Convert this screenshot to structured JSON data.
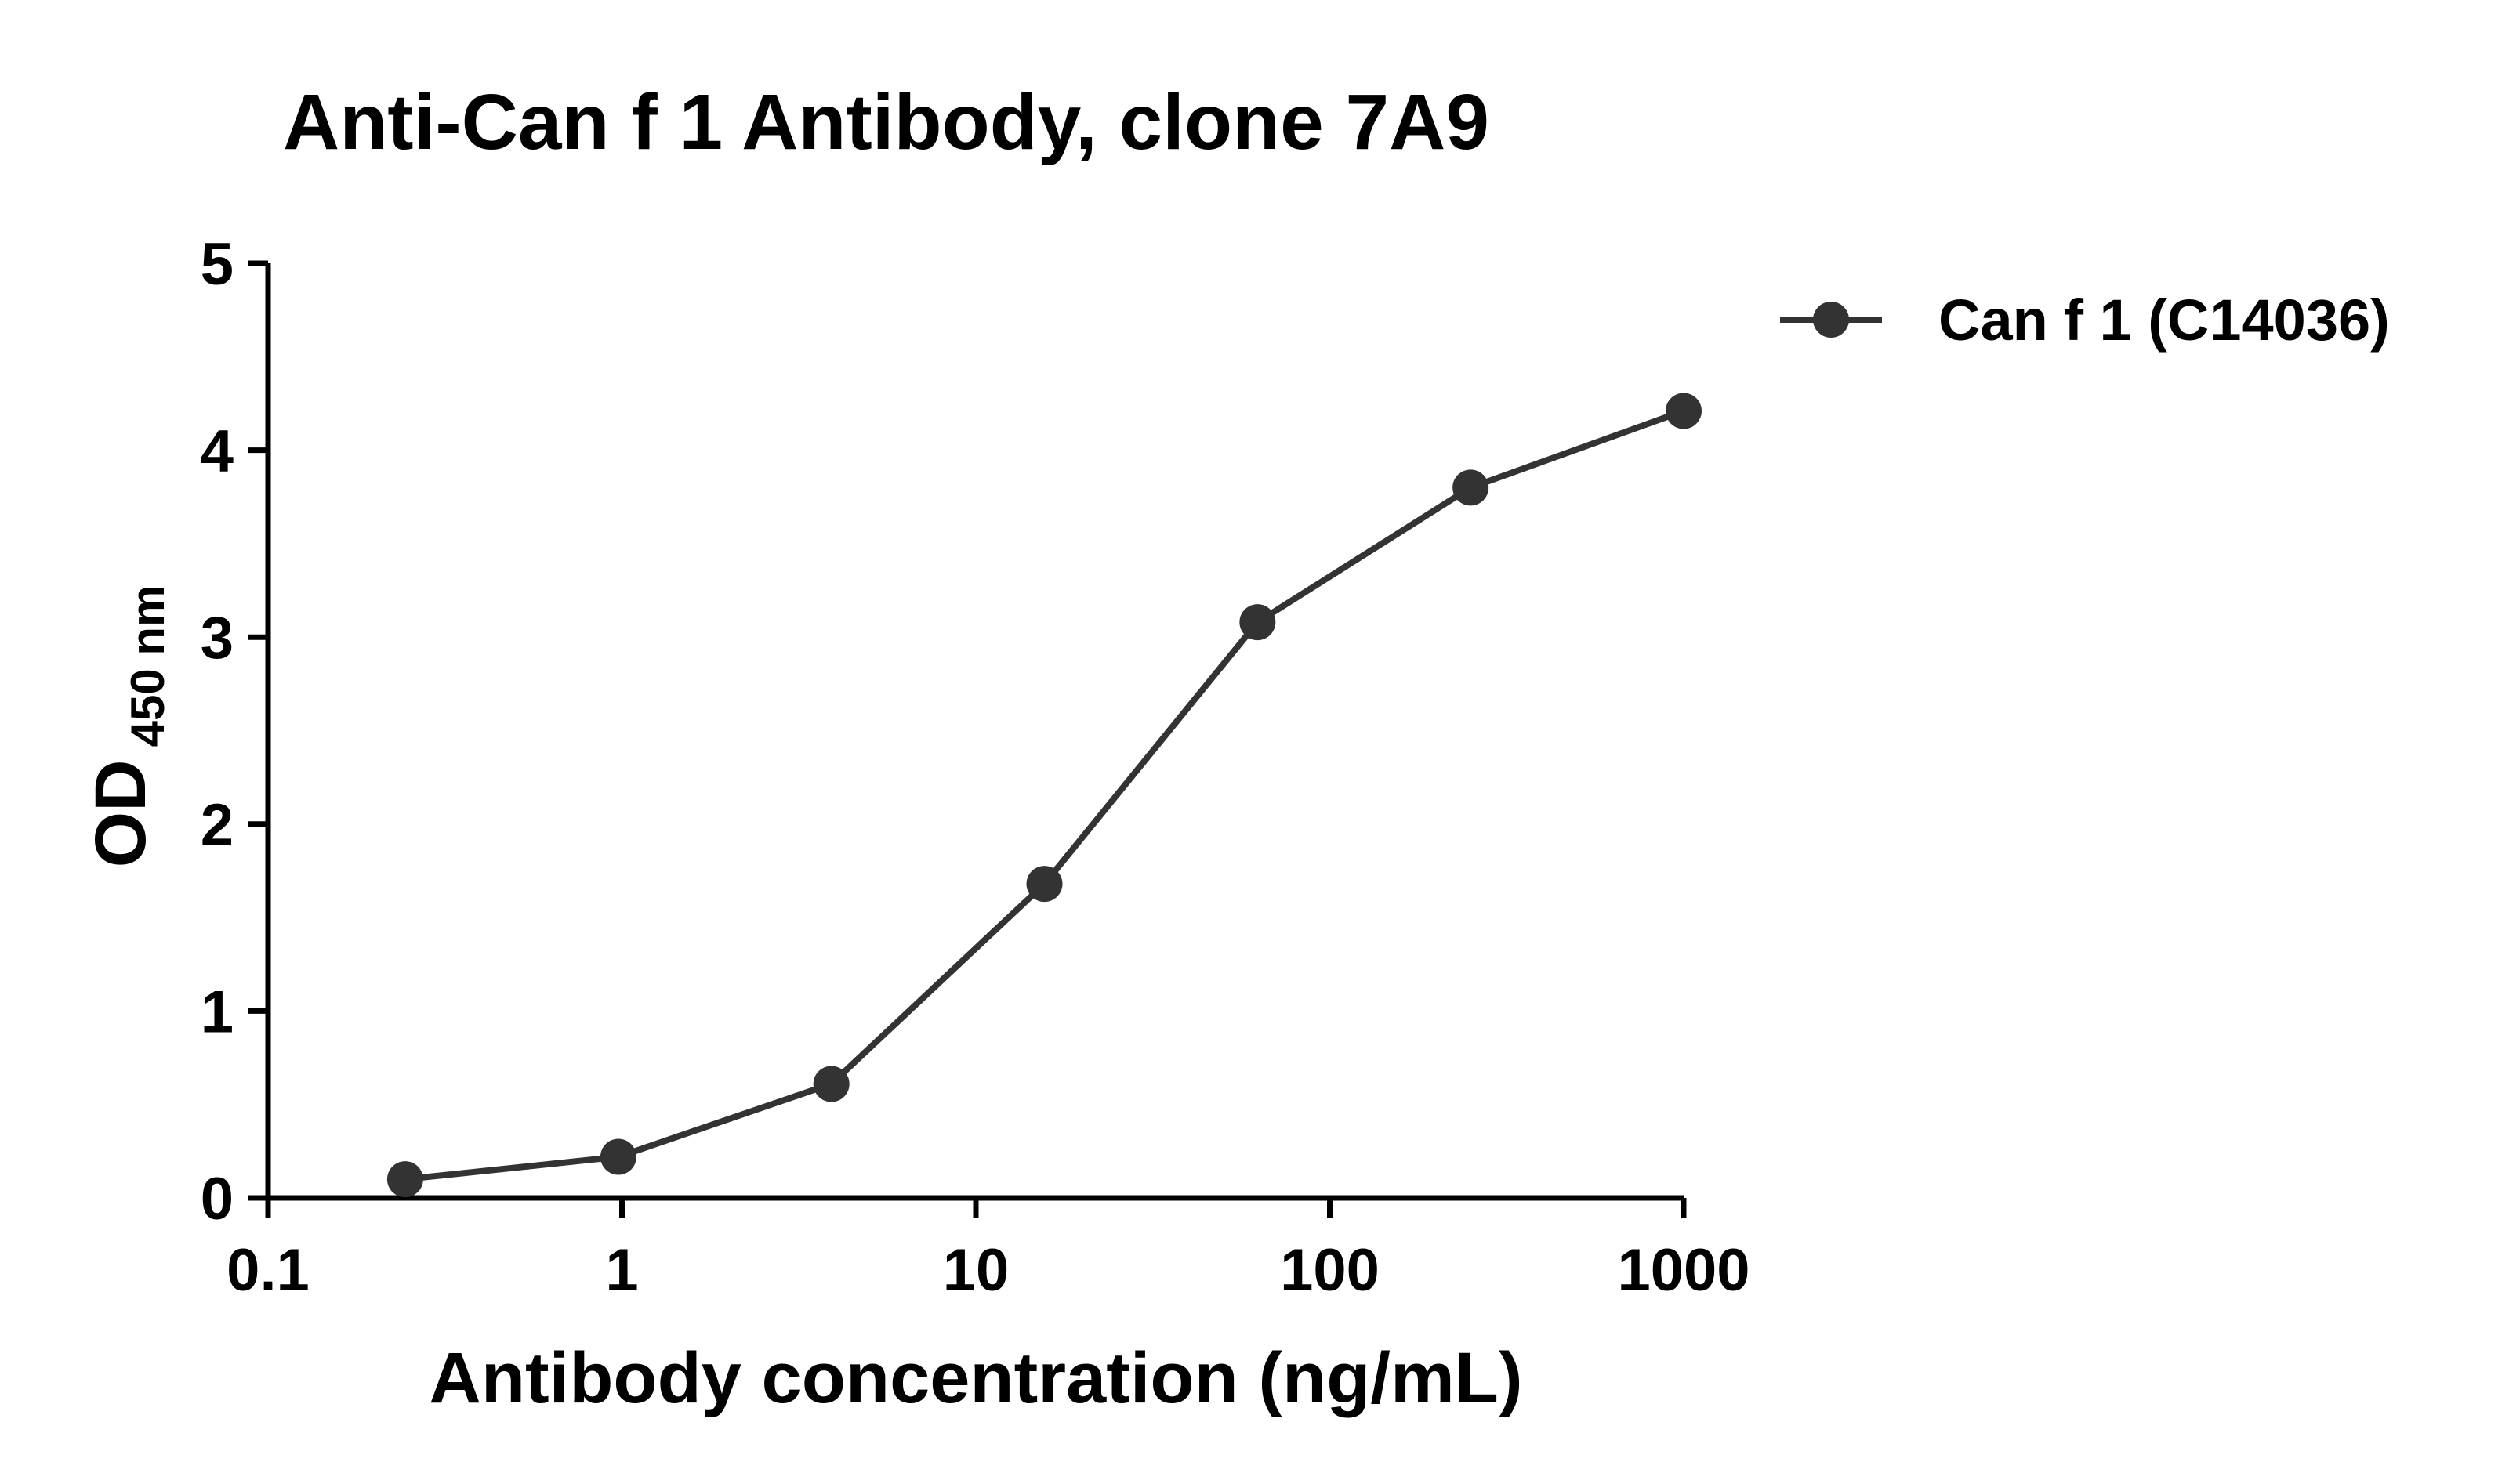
{
  "chart_data": {
    "type": "line",
    "title": "Anti-Can f 1 Antibody, clone 7A9",
    "x_label": "Antibody concentration (ng/mL)",
    "y_label": "OD",
    "y_label_subscript": "450 nm",
    "x_scale": "log",
    "x": [
      0.244,
      0.977,
      3.906,
      15.625,
      62.5,
      250,
      1000
    ],
    "series": [
      {
        "name": "Can f 1 (C14036)",
        "color": "#333333",
        "values": [
          0.1,
          0.22,
          0.61,
          1.68,
          3.08,
          3.8,
          4.21
        ]
      }
    ],
    "xlim": [
      0.1,
      1000
    ],
    "xticks": [
      0.1,
      1,
      10,
      100,
      1000
    ],
    "ylim": [
      0,
      5
    ],
    "yticks": [
      0,
      1,
      2,
      3,
      4,
      5
    ],
    "grid": false,
    "legend": "right"
  }
}
